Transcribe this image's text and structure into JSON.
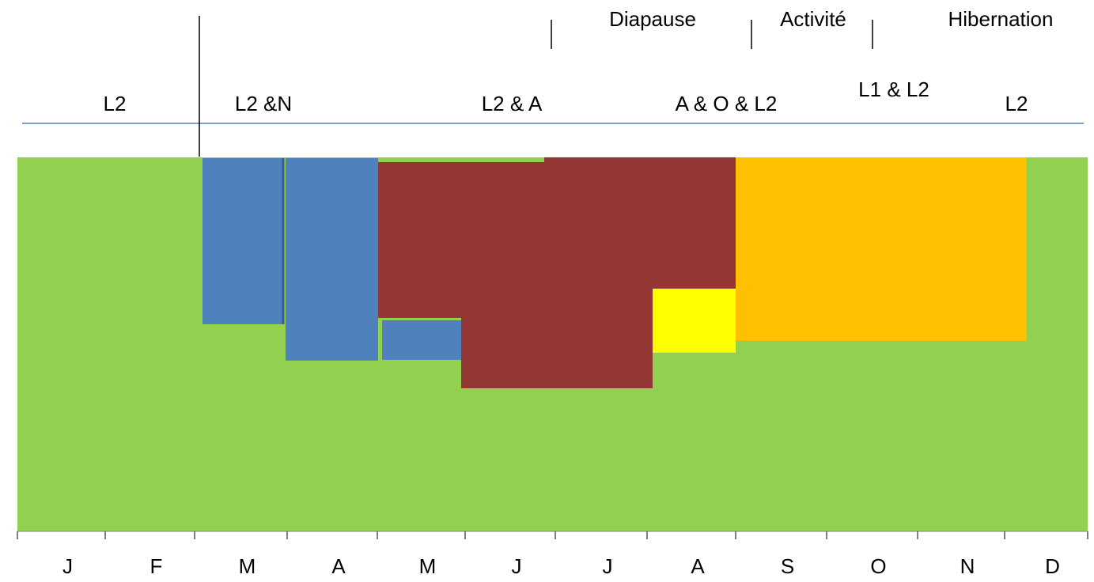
{
  "phases": [
    "Diapause",
    "Activité",
    "Hibernation"
  ],
  "stages": [
    "L2",
    "L2 &N",
    "L2 & A",
    "A & O & L2",
    "L1 & L2",
    "L2"
  ],
  "months": [
    "J",
    "F",
    "M",
    "A",
    "M",
    "J",
    "J",
    "A",
    "S",
    "O",
    "N",
    "D"
  ]
}
